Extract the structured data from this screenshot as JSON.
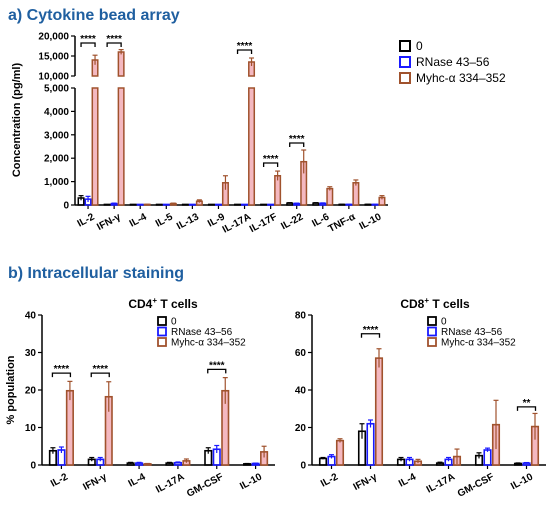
{
  "panel_a_label": "a) Cytokine bead array",
  "panel_b_label": "b) Intracellular staining",
  "chart_data": [
    {
      "type": "bar",
      "title": "",
      "ylabel": "Concentration (pg/ml)",
      "xlabel": "",
      "axis_break": true,
      "ylim_lower": [
        0,
        5000
      ],
      "ylim_upper": [
        10000,
        20000
      ],
      "yticks_lower": [
        "0",
        "1,000",
        "2,000",
        "3,000",
        "4,000",
        "5,000"
      ],
      "yticks_upper": [
        "10,000",
        "15,000",
        "20,000"
      ],
      "categories": [
        "IL-2",
        "IFN-γ",
        "IL-4",
        "IL-5",
        "IL-13",
        "IL-9",
        "IL-17A",
        "IL-17F",
        "IL-22",
        "IL-6",
        "TNF-α",
        "IL-10"
      ],
      "series": [
        {
          "name": "0",
          "color": "#000000",
          "values": [
            300,
            0,
            0,
            0,
            0,
            0,
            0,
            0,
            80,
            80,
            20,
            20
          ],
          "errors": [
            100,
            0,
            0,
            0,
            0,
            0,
            0,
            0,
            20,
            20,
            10,
            10
          ]
        },
        {
          "name": "RNase 43–56",
          "color": "#1a1aff",
          "values": [
            250,
            60,
            0,
            0,
            0,
            0,
            0,
            0,
            60,
            70,
            20,
            20
          ],
          "errors": [
            120,
            20,
            0,
            0,
            0,
            0,
            0,
            0,
            20,
            20,
            10,
            10
          ]
        },
        {
          "name": "Myhc-α 334–352",
          "color": "#a0522d",
          "values": [
            14000,
            16000,
            20,
            60,
            160,
            950,
            13500,
            1250,
            1850,
            700,
            950,
            320
          ],
          "errors": [
            1200,
            600,
            10,
            20,
            60,
            300,
            1000,
            200,
            500,
            80,
            120,
            80
          ]
        }
      ],
      "significance": [
        {
          "from": 0,
          "to": 2,
          "label": "****"
        },
        {
          "from": 1,
          "to": 1,
          "label": "****"
        },
        {
          "from": 6,
          "to": 6,
          "label": "****"
        },
        {
          "from": 7,
          "to": 7,
          "label": "****"
        },
        {
          "from": 8,
          "to": 8,
          "label": "****"
        }
      ]
    },
    {
      "type": "bar",
      "title_main": "CD4",
      "title_sup": "+",
      "title_rest": " T cells",
      "ylabel": "% population",
      "ylim": [
        0,
        40
      ],
      "yticks": [
        "0",
        "10",
        "20",
        "30",
        "40"
      ],
      "categories": [
        "IL-2",
        "IFN-γ",
        "IL-4",
        "IL-17A",
        "GM-CSF",
        "IL-10"
      ],
      "series": [
        {
          "name": "0",
          "color": "#000000",
          "values": [
            3.8,
            1.5,
            0.5,
            0.5,
            3.8,
            0.3
          ],
          "errors": [
            0.8,
            0.5,
            0.2,
            0.2,
            0.8,
            0.1
          ]
        },
        {
          "name": "RNase 43–56",
          "color": "#1a1aff",
          "values": [
            4.0,
            1.5,
            0.5,
            0.6,
            4.2,
            0.4
          ],
          "errors": [
            0.8,
            0.5,
            0.2,
            0.2,
            1.0,
            0.1
          ]
        },
        {
          "name": "Myhc-α 334–352",
          "color": "#a0522d",
          "values": [
            19.8,
            18.2,
            0.3,
            1.1,
            19.8,
            3.5
          ],
          "errors": [
            2.5,
            4.0,
            0.1,
            0.5,
            3.5,
            1.5
          ]
        }
      ],
      "significance": [
        {
          "cat": 0,
          "label": "****"
        },
        {
          "cat": 1,
          "label": "****"
        },
        {
          "cat": 4,
          "label": "****"
        }
      ]
    },
    {
      "type": "bar",
      "title_main": "CD8",
      "title_sup": "+",
      "title_rest": " T cells",
      "ylabel": "",
      "ylim": [
        0,
        80
      ],
      "yticks": [
        "0",
        "20",
        "40",
        "60",
        "80"
      ],
      "categories": [
        "IL-2",
        "IFN-γ",
        "IL-4",
        "IL-17A",
        "GM-CSF",
        "IL-10"
      ],
      "series": [
        {
          "name": "0",
          "color": "#000000",
          "values": [
            3.5,
            18,
            3,
            1,
            5,
            0.8
          ],
          "errors": [
            0.5,
            4,
            1,
            0.5,
            1.5,
            0.3
          ]
        },
        {
          "name": "RNase 43–56",
          "color": "#1a1aff",
          "values": [
            4.5,
            22,
            3,
            3,
            8,
            1
          ],
          "errors": [
            1,
            2,
            1,
            1,
            1,
            0.3
          ]
        },
        {
          "name": "Myhc-α 334–352",
          "color": "#a0522d",
          "values": [
            13,
            57,
            2,
            4.5,
            21.5,
            20.5
          ],
          "errors": [
            1,
            5,
            1,
            4,
            13,
            7
          ]
        }
      ],
      "significance": [
        {
          "cat": 1,
          "label": "****"
        },
        {
          "cat": 5,
          "label": "**"
        }
      ]
    }
  ]
}
